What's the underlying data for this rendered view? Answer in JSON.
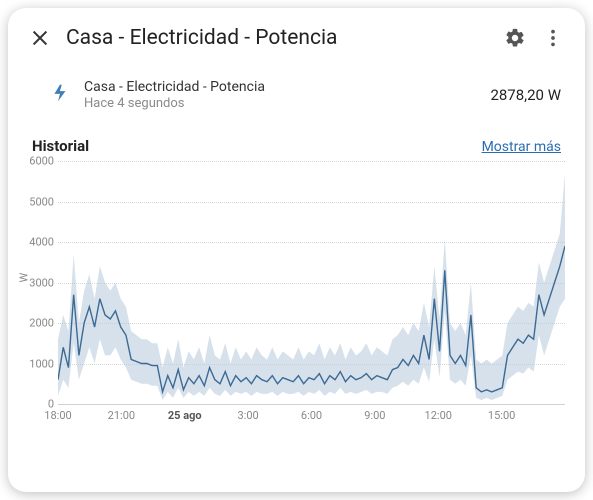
{
  "header": {
    "title": "Casa - Electricidad - Potencia"
  },
  "entity": {
    "name": "Casa - Electricidad - Potencia",
    "updated": "Hace 4 segundos",
    "value": "2878,20 W"
  },
  "history": {
    "section_title": "Historial",
    "show_more": "Mostrar más"
  },
  "chart": {
    "type": "line",
    "ylabel": "W",
    "ylim": [
      0,
      6000
    ],
    "ytick_step": 1000,
    "yticks": [
      0,
      1000,
      2000,
      3000,
      4000,
      5000,
      6000
    ],
    "xticks": [
      {
        "pos": 0.0,
        "label": "18:00"
      },
      {
        "pos": 0.125,
        "label": "21:00"
      },
      {
        "pos": 0.25,
        "label": "25 ago",
        "bold": true
      },
      {
        "pos": 0.375,
        "label": "3:00"
      },
      {
        "pos": 0.5,
        "label": "6:00"
      },
      {
        "pos": 0.625,
        "label": "9:00"
      },
      {
        "pos": 0.75,
        "label": "12:00"
      },
      {
        "pos": 0.875,
        "label": "15:00"
      }
    ],
    "line_color": "#3b6a94",
    "band_color": "#b6c9db",
    "band_opacity": 0.55,
    "grid_color": "#d6d6d6",
    "background_color": "#ffffff",
    "line_width": 1.4,
    "series": [
      600,
      1400,
      900,
      2700,
      1200,
      2000,
      2400,
      1900,
      2600,
      2200,
      2100,
      2300,
      1900,
      1700,
      1100,
      1050,
      1000,
      1000,
      950,
      950,
      300,
      700,
      400,
      850,
      350,
      650,
      500,
      700,
      450,
      900,
      600,
      500,
      800,
      450,
      700,
      550,
      650,
      500,
      700,
      600,
      550,
      700,
      500,
      650,
      600,
      550,
      700,
      500,
      650,
      600,
      750,
      500,
      700,
      600,
      800,
      550,
      700,
      600,
      650,
      750,
      600,
      700,
      650,
      600,
      850,
      900,
      1100,
      950,
      1200,
      1000,
      1700,
      1100,
      2600,
      1300,
      3300,
      1200,
      1000,
      1200,
      950,
      2200,
      400,
      300,
      350,
      300,
      350,
      400,
      1200,
      1400,
      1600,
      1500,
      1700,
      1600,
      2700,
      2200,
      2600,
      3000,
      3400,
      3900
    ],
    "band_upper": [
      1600,
      2200,
      1800,
      3700,
      2000,
      2800,
      3200,
      2600,
      3400,
      3000,
      2800,
      3000,
      2600,
      2400,
      1800,
      1700,
      1600,
      1600,
      1500,
      1500,
      900,
      1400,
      1000,
      1600,
      900,
      1300,
      1100,
      1400,
      1000,
      1700,
      1200,
      1100,
      1500,
      1000,
      1400,
      1100,
      1300,
      1100,
      1400,
      1200,
      1100,
      1400,
      1100,
      1300,
      1200,
      1100,
      1400,
      1100,
      1300,
      1200,
      1500,
      1100,
      1400,
      1200,
      1500,
      1100,
      1400,
      1200,
      1300,
      1500,
      1200,
      1400,
      1300,
      1200,
      1600,
      1700,
      1900,
      1700,
      2000,
      1800,
      2500,
      1900,
      3400,
      2100,
      4100,
      2000,
      1800,
      2000,
      1700,
      3000,
      1100,
      1000,
      1100,
      1000,
      1100,
      1200,
      2000,
      2200,
      2400,
      2300,
      2500,
      2400,
      3500,
      3000,
      3400,
      3800,
      4200,
      5700
    ],
    "band_lower": [
      200,
      600,
      400,
      1500,
      600,
      1000,
      1400,
      1000,
      1600,
      1200,
      1200,
      1400,
      1100,
      900,
      600,
      550,
      500,
      500,
      450,
      450,
      100,
      300,
      150,
      400,
      150,
      300,
      200,
      300,
      200,
      400,
      250,
      200,
      350,
      200,
      300,
      250,
      300,
      200,
      300,
      250,
      250,
      300,
      200,
      300,
      250,
      250,
      300,
      200,
      300,
      250,
      350,
      200,
      300,
      250,
      400,
      250,
      300,
      250,
      300,
      350,
      250,
      300,
      300,
      250,
      400,
      450,
      550,
      450,
      600,
      500,
      900,
      550,
      1600,
      650,
      2300,
      600,
      500,
      600,
      450,
      1200,
      150,
      100,
      150,
      100,
      150,
      200,
      600,
      700,
      800,
      750,
      900,
      800,
      1700,
      1200,
      1600,
      2000,
      2400,
      2600
    ]
  }
}
